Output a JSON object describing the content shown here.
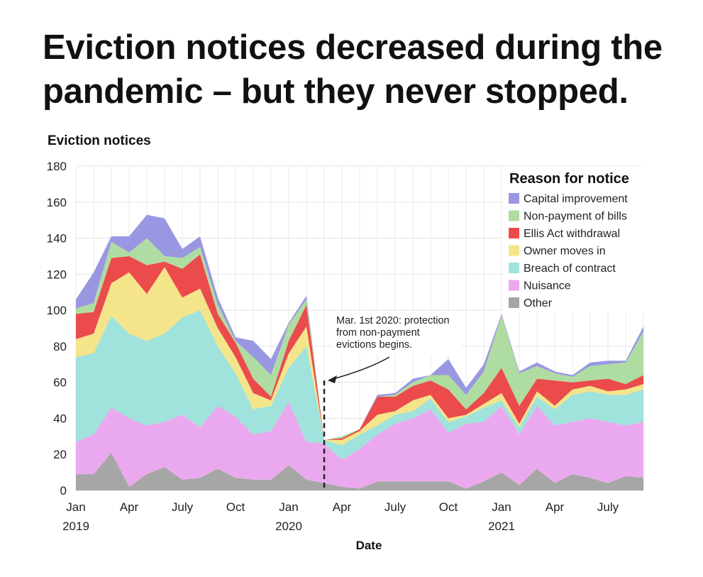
{
  "page": {
    "title": "Eviction notices decreased during the pandemic – but they never stopped."
  },
  "chart_data": {
    "type": "area",
    "stacked": true,
    "ylabel": "Eviction notices",
    "xlabel": "Date",
    "ylim": [
      0,
      180
    ],
    "yticks": [
      0,
      20,
      40,
      60,
      80,
      100,
      120,
      140,
      160,
      180
    ],
    "xticks": [
      {
        "date": "2019-01",
        "label": "Jan",
        "sublabel": "2019"
      },
      {
        "date": "2019-04",
        "label": "Apr",
        "sublabel": ""
      },
      {
        "date": "2019-07",
        "label": "July",
        "sublabel": ""
      },
      {
        "date": "2019-10",
        "label": "Oct",
        "sublabel": ""
      },
      {
        "date": "2020-01",
        "label": "Jan",
        "sublabel": "2020"
      },
      {
        "date": "2020-04",
        "label": "Apr",
        "sublabel": ""
      },
      {
        "date": "2020-07",
        "label": "July",
        "sublabel": ""
      },
      {
        "date": "2020-10",
        "label": "Oct",
        "sublabel": ""
      },
      {
        "date": "2021-01",
        "label": "Jan",
        "sublabel": "2021"
      },
      {
        "date": "2021-04",
        "label": "Apr",
        "sublabel": ""
      },
      {
        "date": "2021-07",
        "label": "July",
        "sublabel": ""
      }
    ],
    "grid": true,
    "legend_title": "Reason for notice",
    "legend_position": "top-right",
    "x": [
      "2019-01",
      "2019-02",
      "2019-03",
      "2019-04",
      "2019-05",
      "2019-06",
      "2019-07",
      "2019-08",
      "2019-09",
      "2019-10",
      "2019-11",
      "2019-12",
      "2020-01",
      "2020-02",
      "2020-03",
      "2020-04",
      "2020-05",
      "2020-06",
      "2020-07",
      "2020-08",
      "2020-09",
      "2020-10",
      "2020-11",
      "2020-12",
      "2021-01",
      "2021-02",
      "2021-03",
      "2021-04",
      "2021-05",
      "2021-06",
      "2021-07",
      "2021-08",
      "2021-09"
    ],
    "series": [
      {
        "name": "Other",
        "color": "#a6a6a6",
        "values": [
          9,
          9,
          21,
          2,
          9,
          13,
          6,
          7,
          12,
          7,
          6,
          6,
          14,
          6,
          4,
          2,
          1,
          5,
          5,
          5,
          5,
          5,
          1,
          5,
          10,
          3,
          12,
          4,
          9,
          7,
          4,
          8,
          7
        ]
      },
      {
        "name": "Nuisance",
        "color": "#eaa9ee",
        "values": [
          18,
          22,
          25,
          38,
          27,
          25,
          36,
          28,
          35,
          34,
          25,
          27,
          35,
          21,
          22,
          15,
          22,
          26,
          32,
          35,
          40,
          27,
          36,
          33,
          37,
          28,
          35,
          32,
          29,
          33,
          34,
          28,
          31
        ]
      },
      {
        "name": "Breach of contract",
        "color": "#a0e2dc",
        "values": [
          47,
          45,
          51,
          47,
          47,
          49,
          54,
          65,
          33,
          24,
          14,
          14,
          19,
          53,
          2,
          8,
          8,
          5,
          5,
          4,
          6,
          6,
          4,
          8,
          3,
          4,
          5,
          9,
          15,
          15,
          15,
          17,
          18
        ]
      },
      {
        "name": "Owner moves in",
        "color": "#f4e48a",
        "values": [
          10,
          11,
          18,
          34,
          26,
          37,
          11,
          12,
          10,
          9,
          9,
          3,
          8,
          11,
          0,
          3,
          2,
          6,
          2,
          6,
          2,
          2,
          1,
          2,
          4,
          2,
          3,
          2,
          3,
          3,
          2,
          3,
          3
        ]
      },
      {
        "name": "Ellis Act withdrawal",
        "color": "#eb4b4b",
        "values": [
          14,
          12,
          14,
          9,
          16,
          3,
          16,
          19,
          8,
          8,
          8,
          2,
          7,
          12,
          0,
          1,
          1,
          10,
          8,
          8,
          8,
          16,
          3,
          6,
          14,
          10,
          7,
          14,
          4,
          3,
          7,
          3,
          5
        ]
      },
      {
        "name": "Non-payment of bills",
        "color": "#afdda1",
        "values": [
          3,
          5,
          9,
          2,
          15,
          3,
          6,
          4,
          5,
          1,
          12,
          12,
          9,
          3,
          0,
          1,
          0,
          0,
          1,
          2,
          3,
          8,
          8,
          12,
          29,
          18,
          7,
          4,
          3,
          8,
          8,
          12,
          24
        ]
      },
      {
        "name": "Capital improvement",
        "color": "#9a97e2",
        "values": [
          5,
          17,
          3,
          9,
          13,
          21,
          5,
          6,
          4,
          2,
          9,
          9,
          1,
          2,
          0,
          0,
          0,
          1,
          1,
          2,
          0,
          9,
          4,
          4,
          1,
          1,
          2,
          1,
          1,
          2,
          2,
          1,
          3
        ]
      }
    ],
    "annotation": {
      "lines": [
        "Mar. 1st 2020: protection",
        "from non-payment",
        "evictions begins."
      ],
      "date": "2020-03"
    }
  }
}
